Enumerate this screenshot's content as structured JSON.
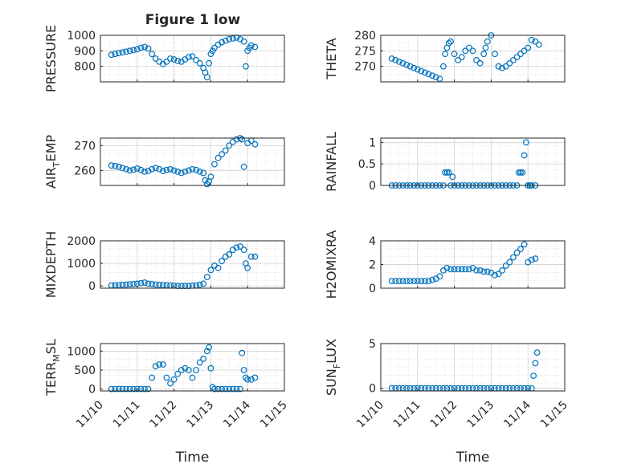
{
  "figure_title": "Figure 1 low",
  "colors": {
    "marker": "#0072BD",
    "axes": "#262626",
    "grid": "#d7d7d7",
    "background": "#ffffff"
  },
  "chart_data": [
    {
      "type": "scatter",
      "ylabel": "PRESSURE",
      "title": "Figure 1 low",
      "xlim": [
        0,
        5
      ],
      "ylim": [
        700,
        1000
      ],
      "yticks": [
        800,
        900,
        1000
      ],
      "show_xticklabels": false,
      "x": [
        0.3,
        0.4,
        0.5,
        0.6,
        0.7,
        0.8,
        0.9,
        1.0,
        1.1,
        1.2,
        1.3,
        1.4,
        1.5,
        1.6,
        1.7,
        1.8,
        1.9,
        2.0,
        2.1,
        2.2,
        2.3,
        2.4,
        2.5,
        2.6,
        2.7,
        2.8,
        2.85,
        2.9,
        2.95,
        3.0,
        3.05,
        3.1,
        3.2,
        3.3,
        3.4,
        3.5,
        3.6,
        3.7,
        3.8,
        3.9,
        3.95,
        4.0,
        4.05,
        4.1,
        4.2
      ],
      "y": [
        875,
        880,
        885,
        890,
        895,
        900,
        905,
        910,
        920,
        925,
        915,
        880,
        850,
        830,
        815,
        830,
        850,
        845,
        835,
        830,
        845,
        860,
        865,
        840,
        820,
        790,
        760,
        730,
        820,
        880,
        900,
        920,
        940,
        955,
        965,
        975,
        980,
        985,
        975,
        960,
        800,
        900,
        920,
        935,
        925
      ]
    },
    {
      "type": "scatter",
      "ylabel": "THETA",
      "xlim": [
        0,
        5
      ],
      "ylim": [
        265,
        280
      ],
      "yticks": [
        270,
        275,
        280
      ],
      "show_xticklabels": false,
      "x": [
        0.3,
        0.4,
        0.5,
        0.6,
        0.7,
        0.8,
        0.9,
        1.0,
        1.1,
        1.2,
        1.3,
        1.4,
        1.5,
        1.6,
        1.7,
        1.75,
        1.8,
        1.85,
        1.9,
        2.0,
        2.1,
        2.2,
        2.3,
        2.4,
        2.5,
        2.6,
        2.7,
        2.8,
        2.85,
        2.9,
        3.0,
        3.1,
        3.2,
        3.3,
        3.4,
        3.5,
        3.6,
        3.7,
        3.8,
        3.9,
        4.0,
        4.1,
        4.2,
        4.3
      ],
      "y": [
        272.5,
        272,
        271.5,
        271,
        270.5,
        270,
        269.5,
        269,
        268.5,
        268,
        267.5,
        267,
        266.5,
        266,
        270,
        274,
        276,
        277.5,
        278,
        274,
        272,
        273,
        275,
        276,
        275,
        272,
        271,
        274,
        276,
        278,
        280,
        274,
        270,
        269.5,
        270,
        271,
        272,
        273,
        274,
        275,
        276,
        278.5,
        278,
        277
      ]
    },
    {
      "type": "scatter",
      "ylabel": "AIR_TEMP",
      "ylabel_base": "AIR",
      "ylabel_sub": "T",
      "ylabel_rest": "EMP",
      "xlim": [
        0,
        5
      ],
      "ylim": [
        254,
        273
      ],
      "yticks": [
        260,
        270
      ],
      "show_xticklabels": false,
      "x": [
        0.3,
        0.4,
        0.5,
        0.6,
        0.7,
        0.8,
        0.9,
        1.0,
        1.1,
        1.2,
        1.3,
        1.4,
        1.5,
        1.6,
        1.7,
        1.8,
        1.9,
        2.0,
        2.1,
        2.2,
        2.3,
        2.4,
        2.5,
        2.6,
        2.7,
        2.8,
        2.85,
        2.9,
        2.95,
        3.0,
        3.1,
        3.2,
        3.3,
        3.4,
        3.5,
        3.6,
        3.7,
        3.8,
        3.85,
        3.9,
        4.0,
        4.1,
        4.2
      ],
      "y": [
        262,
        261.8,
        261.5,
        261,
        260.5,
        260,
        260.3,
        260.8,
        260.2,
        259.5,
        259.8,
        260.5,
        261,
        260.5,
        259.8,
        260.2,
        260.5,
        260,
        259.5,
        259,
        259.5,
        260,
        260.5,
        260.2,
        259.5,
        259,
        256,
        254.5,
        255.5,
        257.5,
        262.5,
        265,
        266.5,
        268,
        270,
        271.5,
        272.5,
        273,
        272.5,
        261.5,
        271,
        272,
        270.5
      ]
    },
    {
      "type": "scatter",
      "ylabel": "RAINFALL",
      "xlim": [
        0,
        5
      ],
      "ylim": [
        0,
        1.1
      ],
      "yticks": [
        0,
        0.5,
        1
      ],
      "show_xticklabels": false,
      "x": [
        0.3,
        0.4,
        0.5,
        0.6,
        0.7,
        0.8,
        0.9,
        1.0,
        1.1,
        1.2,
        1.3,
        1.4,
        1.5,
        1.6,
        1.7,
        1.75,
        1.8,
        1.85,
        1.9,
        1.95,
        2.0,
        2.1,
        2.2,
        2.3,
        2.4,
        2.5,
        2.6,
        2.7,
        2.8,
        2.9,
        3.0,
        3.1,
        3.2,
        3.3,
        3.4,
        3.5,
        3.6,
        3.7,
        3.75,
        3.8,
        3.85,
        3.9,
        3.95,
        4.0,
        4.05,
        4.1,
        4.2
      ],
      "y": [
        0,
        0,
        0,
        0,
        0,
        0,
        0,
        0,
        0,
        0,
        0,
        0,
        0,
        0,
        0,
        0.3,
        0.3,
        0.3,
        0,
        0.2,
        0,
        0,
        0,
        0,
        0,
        0,
        0,
        0,
        0,
        0,
        0,
        0,
        0,
        0,
        0,
        0,
        0,
        0,
        0.3,
        0.3,
        0.3,
        0.7,
        1.0,
        0,
        0,
        0,
        0
      ]
    },
    {
      "type": "scatter",
      "ylabel": "MIXDEPTH",
      "xlim": [
        0,
        5
      ],
      "ylim": [
        -100,
        2000
      ],
      "yticks": [
        0,
        1000,
        2000
      ],
      "show_xticklabels": false,
      "x": [
        0.3,
        0.4,
        0.5,
        0.6,
        0.7,
        0.8,
        0.9,
        1.0,
        1.1,
        1.2,
        1.3,
        1.4,
        1.5,
        1.6,
        1.7,
        1.8,
        1.9,
        2.0,
        2.1,
        2.2,
        2.3,
        2.4,
        2.5,
        2.6,
        2.7,
        2.8,
        2.9,
        3.0,
        3.1,
        3.2,
        3.3,
        3.4,
        3.5,
        3.6,
        3.7,
        3.8,
        3.9,
        3.95,
        4.0,
        4.1,
        4.2
      ],
      "y": [
        20,
        30,
        40,
        50,
        60,
        70,
        80,
        100,
        120,
        150,
        100,
        80,
        60,
        50,
        40,
        30,
        20,
        10,
        0,
        0,
        0,
        0,
        10,
        20,
        50,
        100,
        400,
        700,
        900,
        800,
        1100,
        1300,
        1400,
        1600,
        1700,
        1750,
        1600,
        1000,
        800,
        1300,
        1300
      ]
    },
    {
      "type": "scatter",
      "ylabel": "H2OMIXRA",
      "xlim": [
        0,
        5
      ],
      "ylim": [
        0,
        4
      ],
      "yticks": [
        0,
        2,
        4
      ],
      "show_xticklabels": false,
      "x": [
        0.3,
        0.4,
        0.5,
        0.6,
        0.7,
        0.8,
        0.9,
        1.0,
        1.1,
        1.2,
        1.3,
        1.4,
        1.5,
        1.6,
        1.7,
        1.8,
        1.9,
        2.0,
        2.1,
        2.2,
        2.3,
        2.4,
        2.5,
        2.6,
        2.7,
        2.8,
        2.9,
        3.0,
        3.1,
        3.2,
        3.3,
        3.4,
        3.5,
        3.6,
        3.7,
        3.8,
        3.9,
        4.0,
        4.1,
        4.2
      ],
      "y": [
        0.6,
        0.6,
        0.6,
        0.6,
        0.6,
        0.6,
        0.6,
        0.6,
        0.6,
        0.6,
        0.6,
        0.7,
        0.8,
        1.0,
        1.5,
        1.7,
        1.6,
        1.6,
        1.6,
        1.6,
        1.6,
        1.6,
        1.7,
        1.5,
        1.5,
        1.4,
        1.4,
        1.3,
        1.1,
        1.2,
        1.5,
        1.9,
        2.2,
        2.6,
        3.0,
        3.3,
        3.7,
        2.2,
        2.4,
        2.5
      ]
    },
    {
      "type": "scatter",
      "ylabel": "TERR_MSL",
      "ylabel_base": "TERR",
      "ylabel_sub": "M",
      "ylabel_rest": "SL",
      "xlim": [
        0,
        5
      ],
      "ylim": [
        -50,
        1200
      ],
      "yticks": [
        0,
        500,
        1000
      ],
      "show_xticklabels": true,
      "x": [
        0.3,
        0.4,
        0.5,
        0.6,
        0.7,
        0.8,
        0.9,
        1.0,
        1.1,
        1.2,
        1.3,
        1.4,
        1.5,
        1.6,
        1.7,
        1.8,
        1.9,
        2.0,
        2.1,
        2.2,
        2.3,
        2.4,
        2.5,
        2.6,
        2.7,
        2.8,
        2.9,
        2.95,
        3.0,
        3.05,
        3.1,
        3.2,
        3.3,
        3.4,
        3.5,
        3.6,
        3.7,
        3.8,
        3.85,
        3.9,
        3.95,
        4.0,
        4.1,
        4.2
      ],
      "y": [
        0,
        0,
        0,
        0,
        0,
        0,
        0,
        0,
        0,
        0,
        0,
        300,
        600,
        650,
        650,
        300,
        150,
        250,
        400,
        500,
        550,
        500,
        300,
        500,
        700,
        800,
        1000,
        1100,
        550,
        50,
        0,
        0,
        0,
        0,
        0,
        0,
        0,
        0,
        950,
        500,
        300,
        250,
        250,
        300
      ]
    },
    {
      "type": "scatter",
      "ylabel": "SUN_FLUX",
      "ylabel_base": "SUN",
      "ylabel_sub": "F",
      "ylabel_rest": "LUX",
      "xlim": [
        0,
        5
      ],
      "ylim": [
        -0.3,
        5
      ],
      "yticks": [
        0,
        5
      ],
      "show_xticklabels": true,
      "x": [
        0.3,
        0.4,
        0.5,
        0.6,
        0.7,
        0.8,
        0.9,
        1.0,
        1.1,
        1.2,
        1.3,
        1.4,
        1.5,
        1.6,
        1.7,
        1.8,
        1.9,
        2.0,
        2.1,
        2.2,
        2.3,
        2.4,
        2.5,
        2.6,
        2.7,
        2.8,
        2.9,
        3.0,
        3.1,
        3.2,
        3.3,
        3.4,
        3.5,
        3.6,
        3.7,
        3.8,
        3.9,
        4.0,
        4.1,
        4.15,
        4.2,
        4.25
      ],
      "y": [
        0,
        0,
        0,
        0,
        0,
        0,
        0,
        0,
        0,
        0,
        0,
        0,
        0,
        0,
        0,
        0,
        0,
        0,
        0,
        0,
        0,
        0,
        0,
        0,
        0,
        0,
        0,
        0,
        0,
        0,
        0,
        0,
        0,
        0,
        0,
        0,
        0,
        0,
        0,
        1.4,
        2.8,
        4.0
      ]
    }
  ],
  "x_axis": {
    "label": "Time",
    "tick_values": [
      0,
      1,
      2,
      3,
      4,
      5
    ],
    "tick_labels": [
      "11/10",
      "11/11",
      "11/12",
      "11/13",
      "11/14",
      "11/15"
    ]
  }
}
